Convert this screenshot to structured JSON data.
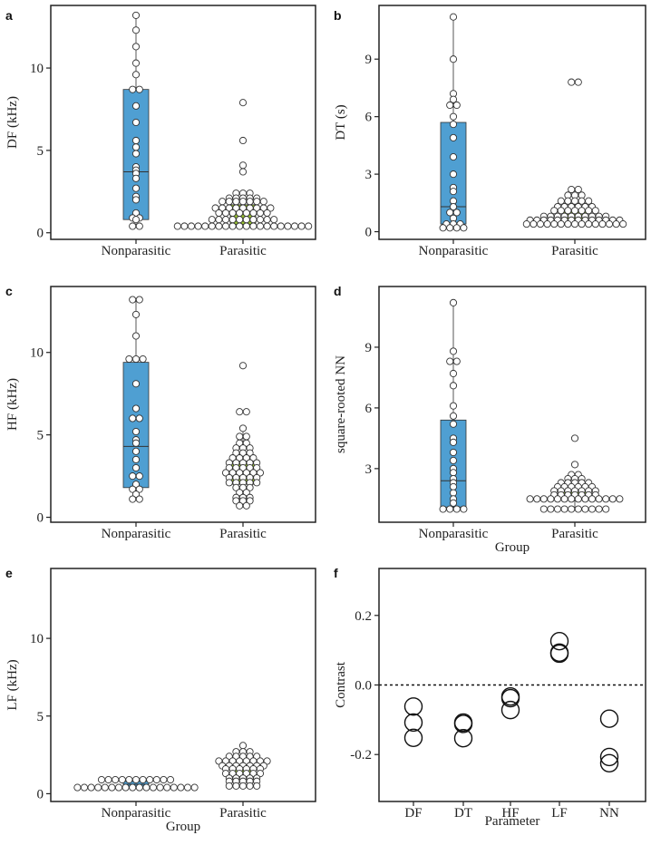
{
  "figure": {
    "colors": {
      "nonparasitic_box": "#4f9fd2",
      "parasitic_box": "#96c130",
      "point_fill": "#ffffff",
      "point_stroke": "#333333",
      "frame": "#222222"
    }
  },
  "chart_data": [
    {
      "panel": "a",
      "type": "box+beeswarm",
      "ylabel": "DF (kHz)",
      "xlabel": "",
      "categories": [
        "Nonparasitic",
        "Parasitic"
      ],
      "yticks": [
        0,
        5,
        10
      ],
      "ylim": [
        -0.4,
        13.8
      ],
      "groups": [
        {
          "name": "Nonparasitic",
          "color": "#4f9fd2",
          "box": {
            "q1": 0.8,
            "median": 3.7,
            "q3": 8.7,
            "whisker_low": 0.4,
            "whisker_high": 13.2
          },
          "points": [
            13.2,
            12.3,
            11.3,
            10.3,
            9.6,
            8.7,
            8.7,
            7.7,
            6.7,
            5.6,
            5.2,
            4.8,
            4.0,
            3.8,
            3.6,
            3.3,
            2.7,
            2.2,
            2.0,
            1.2,
            0.9,
            0.9,
            0.8,
            0.4,
            0.4
          ]
        },
        {
          "name": "Parasitic",
          "color": "#96c130",
          "box": {
            "q1": 0.5,
            "median": 1.2,
            "q3": 1.7,
            "whisker_low": 0.4,
            "whisker_high": 2.4
          },
          "points": [
            7.9,
            5.6,
            4.1,
            3.7,
            2.4,
            2.4,
            2.4,
            2.1,
            2.1,
            2.1,
            2.1,
            2.1,
            1.9,
            1.9,
            1.9,
            1.9,
            1.9,
            1.9,
            1.9,
            1.5,
            1.5,
            1.5,
            1.5,
            1.5,
            1.5,
            1.5,
            1.5,
            1.5,
            1.2,
            1.2,
            1.2,
            1.2,
            1.2,
            1.2,
            1.2,
            1.2,
            0.8,
            0.8,
            0.8,
            0.8,
            0.8,
            0.8,
            0.8,
            0.8,
            0.8,
            0.8,
            0.4,
            0.4,
            0.4,
            0.4,
            0.4,
            0.4,
            0.4,
            0.4,
            0.4,
            0.4,
            0.4,
            0.4,
            0.4,
            0.4,
            0.4,
            0.4,
            0.4,
            0.4,
            0.4,
            0.4
          ]
        }
      ]
    },
    {
      "panel": "b",
      "type": "box+beeswarm",
      "ylabel": "DT (s)",
      "xlabel": "",
      "categories": [
        "Nonparasitic",
        "Parasitic"
      ],
      "yticks": [
        0,
        3,
        6,
        9
      ],
      "ylim": [
        -0.4,
        11.8
      ],
      "groups": [
        {
          "name": "Nonparasitic",
          "color": "#4f9fd2",
          "box": {
            "q1": 0.4,
            "median": 1.3,
            "q3": 5.7,
            "whisker_low": 0.2,
            "whisker_high": 11.2
          },
          "points": [
            11.2,
            9.0,
            7.2,
            6.9,
            6.6,
            6.6,
            6.0,
            5.6,
            4.9,
            3.9,
            3.0,
            2.3,
            2.1,
            1.6,
            1.3,
            1.0,
            1.0,
            0.7,
            0.4,
            0.4,
            0.4,
            0.2,
            0.2,
            0.2,
            0.2
          ]
        },
        {
          "name": "Parasitic",
          "color": "#96c130",
          "box": {
            "q1": 0.6,
            "median": 0.8,
            "q3": 1.1,
            "whisker_low": 0.4,
            "whisker_high": 1.6
          },
          "points": [
            7.8,
            7.8,
            2.2,
            2.2,
            1.9,
            1.9,
            1.9,
            1.6,
            1.6,
            1.6,
            1.6,
            1.6,
            1.3,
            1.3,
            1.3,
            1.3,
            1.3,
            1.3,
            1.1,
            1.1,
            1.1,
            1.1,
            1.1,
            1.1,
            1.1,
            0.8,
            0.8,
            0.8,
            0.8,
            0.8,
            0.8,
            0.8,
            0.8,
            0.8,
            0.8,
            0.6,
            0.6,
            0.6,
            0.6,
            0.6,
            0.6,
            0.6,
            0.6,
            0.6,
            0.6,
            0.6,
            0.6,
            0.6,
            0.6,
            0.4,
            0.4,
            0.4,
            0.4,
            0.4,
            0.4,
            0.4,
            0.4,
            0.4,
            0.4,
            0.4,
            0.4,
            0.4,
            0.4,
            0.4
          ]
        }
      ]
    },
    {
      "panel": "c",
      "type": "box+beeswarm",
      "ylabel": "HF (kHz)",
      "xlabel": "",
      "categories": [
        "Nonparasitic",
        "Parasitic"
      ],
      "yticks": [
        0,
        5,
        10
      ],
      "ylim": [
        -0.3,
        14.0
      ],
      "groups": [
        {
          "name": "Nonparasitic",
          "color": "#4f9fd2",
          "box": {
            "q1": 1.8,
            "median": 4.3,
            "q3": 9.4,
            "whisker_low": 1.1,
            "whisker_high": 13.2
          },
          "points": [
            13.2,
            13.2,
            12.3,
            11.0,
            9.6,
            9.6,
            9.6,
            8.1,
            6.6,
            6.0,
            6.0,
            5.2,
            4.7,
            4.5,
            4.0,
            3.5,
            3.0,
            2.5,
            2.5,
            2.0,
            1.7,
            1.7,
            1.4,
            1.1,
            1.1
          ]
        },
        {
          "name": "Parasitic",
          "color": "#96c130",
          "box": {
            "q1": 2.0,
            "median": 2.7,
            "q3": 3.6,
            "whisker_low": 0.7,
            "whisker_high": 5.4
          },
          "points": [
            9.2,
            6.4,
            6.4,
            5.4,
            4.9,
            4.9,
            4.5,
            4.5,
            4.2,
            4.2,
            4.2,
            3.9,
            3.9,
            3.9,
            3.6,
            3.6,
            3.6,
            3.6,
            3.3,
            3.3,
            3.3,
            3.3,
            3.3,
            3.0,
            3.0,
            3.0,
            3.0,
            3.0,
            2.7,
            2.7,
            2.7,
            2.7,
            2.7,
            2.7,
            2.4,
            2.4,
            2.4,
            2.4,
            2.4,
            2.1,
            2.1,
            2.1,
            2.1,
            2.1,
            1.8,
            1.8,
            1.8,
            1.5,
            1.5,
            1.2,
            1.2,
            1.2,
            1.0,
            1.0,
            1.0,
            0.7,
            0.7
          ]
        }
      ]
    },
    {
      "panel": "d",
      "type": "box+beeswarm",
      "ylabel": "square-rooted NN",
      "xlabel": "Group",
      "categories": [
        "Nonparasitic",
        "Parasitic"
      ],
      "yticks": [
        3,
        6,
        9
      ],
      "ylim": [
        0.35,
        12.0
      ],
      "groups": [
        {
          "name": "Nonparasitic",
          "color": "#4f9fd2",
          "box": {
            "q1": 1.1,
            "median": 2.4,
            "q3": 5.4,
            "whisker_low": 1.0,
            "whisker_high": 11.2
          },
          "points": [
            11.2,
            8.8,
            8.3,
            8.3,
            7.7,
            7.1,
            6.1,
            5.6,
            5.2,
            4.5,
            4.3,
            3.8,
            3.4,
            3.0,
            2.8,
            2.5,
            2.3,
            2.1,
            1.8,
            1.5,
            1.3,
            1.0,
            1.0,
            1.0,
            1.0
          ]
        },
        {
          "name": "Parasitic",
          "color": "#96c130",
          "box": {
            "q1": 1.5,
            "median": 1.7,
            "q3": 2.1,
            "whisker_low": 1.0,
            "whisker_high": 2.6
          },
          "points": [
            4.5,
            3.2,
            2.7,
            2.7,
            2.5,
            2.5,
            2.5,
            2.3,
            2.3,
            2.3,
            2.3,
            2.3,
            2.1,
            2.1,
            2.1,
            2.1,
            2.1,
            2.1,
            1.9,
            1.9,
            1.9,
            1.9,
            1.9,
            1.9,
            1.9,
            1.7,
            1.7,
            1.7,
            1.7,
            1.7,
            1.7,
            1.7,
            1.5,
            1.5,
            1.5,
            1.5,
            1.5,
            1.5,
            1.5,
            1.5,
            1.5,
            1.5,
            1.5,
            1.5,
            1.5,
            1.5,
            1.0,
            1.0,
            1.0,
            1.0,
            1.0,
            1.0,
            1.0,
            1.0,
            1.0,
            1.0
          ]
        }
      ]
    },
    {
      "panel": "e",
      "type": "box+beeswarm",
      "ylabel": "LF (kHz)",
      "xlabel": "Group",
      "categories": [
        "Nonparasitic",
        "Parasitic"
      ],
      "yticks": [
        0,
        5,
        10
      ],
      "ylim": [
        -0.5,
        14.5
      ],
      "groups": [
        {
          "name": "Nonparasitic",
          "color": "#4f9fd2",
          "box": {
            "q1": 0.45,
            "median": 0.6,
            "q3": 0.8,
            "whisker_low": 0.4,
            "whisker_high": 0.9
          },
          "points": [
            0.9,
            0.9,
            0.9,
            0.9,
            0.9,
            0.9,
            0.9,
            0.9,
            0.9,
            0.9,
            0.9,
            0.4,
            0.4,
            0.4,
            0.4,
            0.4,
            0.4,
            0.4,
            0.4,
            0.4,
            0.4,
            0.4,
            0.4,
            0.4,
            0.4,
            0.4,
            0.4,
            0.4,
            0.4
          ]
        },
        {
          "name": "Parasitic",
          "color": "#96c130",
          "box": {
            "q1": 1.2,
            "median": 1.6,
            "q3": 2.1,
            "whisker_low": 0.6,
            "whisker_high": 2.6
          },
          "points": [
            3.1,
            2.7,
            2.7,
            2.7,
            2.4,
            2.4,
            2.4,
            2.4,
            2.4,
            2.1,
            2.1,
            2.1,
            2.1,
            2.1,
            2.1,
            2.1,
            2.1,
            1.8,
            1.8,
            1.8,
            1.8,
            1.8,
            1.8,
            1.8,
            1.6,
            1.6,
            1.6,
            1.6,
            1.6,
            1.6,
            1.3,
            1.3,
            1.3,
            1.3,
            1.3,
            1.3,
            1.0,
            1.0,
            1.0,
            1.0,
            1.0,
            0.8,
            0.8,
            0.8,
            0.8,
            0.8,
            0.5,
            0.5,
            0.5,
            0.5,
            0.5
          ]
        }
      ]
    },
    {
      "panel": "f",
      "type": "scatter",
      "ylabel": "Contrast",
      "xlabel": "Parameter",
      "categories": [
        "DF",
        "DT",
        "HF",
        "LF",
        "NN"
      ],
      "yticks": [
        -0.2,
        0.0,
        0.2
      ],
      "ytick_labels": [
        "-0.2",
        "0.0",
        "0.2"
      ],
      "ylim": [
        -0.335,
        0.335
      ],
      "reference_line": 0.0,
      "points": [
        {
          "category": "DF",
          "values": [
            -0.062,
            -0.108,
            -0.152
          ]
        },
        {
          "category": "DT",
          "values": [
            -0.108,
            -0.112,
            -0.153
          ]
        },
        {
          "category": "HF",
          "values": [
            -0.033,
            -0.038,
            -0.072
          ]
        },
        {
          "category": "LF",
          "values": [
            0.126,
            0.093,
            0.09
          ]
        },
        {
          "category": "NN",
          "values": [
            -0.097,
            -0.207,
            -0.225
          ]
        }
      ]
    }
  ]
}
